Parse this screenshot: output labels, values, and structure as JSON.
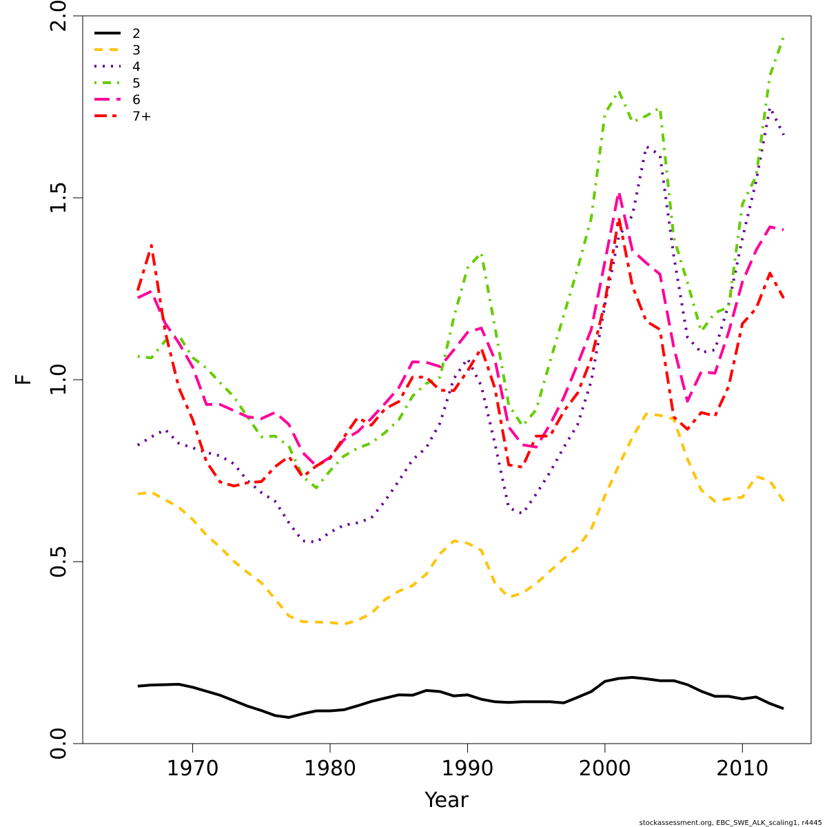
{
  "chart_data": {
    "type": "line",
    "title": "",
    "xlabel": "Year",
    "ylabel": "F",
    "xlim": [
      1962,
      2015
    ],
    "ylim": [
      0,
      2
    ],
    "x_ticks": [
      1970,
      1980,
      1990,
      2000,
      2010
    ],
    "y_ticks": [
      0.0,
      0.5,
      1.0,
      1.5,
      2.0
    ],
    "y_tick_labels": [
      "0.0",
      "0.5",
      "1.0",
      "1.5",
      "2.0"
    ],
    "grid": false,
    "legend_position": "top-left",
    "footer_note": "stockassessment.org, EBC_SWE_ALK_scaling1, r4445",
    "x": [
      1966,
      1967,
      1968,
      1969,
      1970,
      1971,
      1972,
      1973,
      1974,
      1975,
      1976,
      1977,
      1978,
      1979,
      1980,
      1981,
      1982,
      1983,
      1984,
      1985,
      1986,
      1987,
      1988,
      1989,
      1990,
      1991,
      1992,
      1993,
      1994,
      1995,
      1996,
      1997,
      1998,
      1999,
      2000,
      2001,
      2002,
      2003,
      2004,
      2005,
      2006,
      2007,
      2008,
      2009,
      2010,
      2011,
      2012,
      2013
    ],
    "series": [
      {
        "name": "2",
        "color": "#000000",
        "dash": "solid",
        "values": [
          0.158,
          0.161,
          0.162,
          0.163,
          0.155,
          0.144,
          0.133,
          0.118,
          0.103,
          0.091,
          0.077,
          0.072,
          0.082,
          0.09,
          0.09,
          0.093,
          0.104,
          0.116,
          0.125,
          0.134,
          0.133,
          0.146,
          0.143,
          0.131,
          0.134,
          0.122,
          0.115,
          0.113,
          0.115,
          0.115,
          0.115,
          0.112,
          0.127,
          0.143,
          0.171,
          0.179,
          0.182,
          0.178,
          0.173,
          0.173,
          0.162,
          0.144,
          0.13,
          0.13,
          0.123,
          0.128,
          0.11,
          0.096
        ]
      },
      {
        "name": "3",
        "color": "#FFC40C",
        "dash": "dashed",
        "values": [
          0.686,
          0.691,
          0.67,
          0.649,
          0.616,
          0.573,
          0.54,
          0.501,
          0.47,
          0.442,
          0.397,
          0.351,
          0.335,
          0.334,
          0.333,
          0.328,
          0.339,
          0.358,
          0.396,
          0.419,
          0.434,
          0.466,
          0.522,
          0.557,
          0.551,
          0.531,
          0.441,
          0.402,
          0.414,
          0.44,
          0.474,
          0.508,
          0.538,
          0.59,
          0.681,
          0.764,
          0.842,
          0.906,
          0.902,
          0.892,
          0.782,
          0.697,
          0.666,
          0.673,
          0.677,
          0.734,
          0.722,
          0.666
        ]
      },
      {
        "name": "4",
        "color": "#660099",
        "dash": "dotted",
        "values": [
          0.82,
          0.843,
          0.863,
          0.825,
          0.813,
          0.8,
          0.791,
          0.769,
          0.722,
          0.69,
          0.666,
          0.607,
          0.557,
          0.554,
          0.581,
          0.6,
          0.607,
          0.62,
          0.667,
          0.722,
          0.78,
          0.813,
          0.881,
          1.003,
          1.058,
          0.983,
          0.823,
          0.648,
          0.632,
          0.686,
          0.746,
          0.814,
          0.876,
          0.996,
          1.206,
          1.393,
          1.452,
          1.641,
          1.618,
          1.341,
          1.117,
          1.075,
          1.082,
          1.207,
          1.389,
          1.546,
          1.749,
          1.673
        ]
      },
      {
        "name": "5",
        "color": "#66CC00",
        "dash": "dotdash",
        "values": [
          1.064,
          1.06,
          1.107,
          1.122,
          1.061,
          1.032,
          0.992,
          0.953,
          0.897,
          0.843,
          0.845,
          0.817,
          0.734,
          0.703,
          0.75,
          0.79,
          0.812,
          0.826,
          0.855,
          0.89,
          0.955,
          0.99,
          1.007,
          1.171,
          1.307,
          1.349,
          1.143,
          0.931,
          0.873,
          0.918,
          1.05,
          1.177,
          1.304,
          1.444,
          1.731,
          1.794,
          1.708,
          1.725,
          1.748,
          1.391,
          1.267,
          1.133,
          1.184,
          1.199,
          1.483,
          1.56,
          1.836,
          1.943
        ]
      },
      {
        "name": "6",
        "color": "#FF0099",
        "dash": "longdash",
        "values": [
          1.225,
          1.243,
          1.155,
          1.101,
          1.035,
          0.932,
          0.932,
          0.915,
          0.898,
          0.893,
          0.91,
          0.877,
          0.8,
          0.763,
          0.787,
          0.835,
          0.857,
          0.894,
          0.935,
          0.978,
          1.049,
          1.048,
          1.036,
          1.082,
          1.13,
          1.142,
          1.054,
          0.87,
          0.821,
          0.815,
          0.877,
          0.951,
          1.042,
          1.138,
          1.325,
          1.518,
          1.355,
          1.321,
          1.29,
          1.09,
          0.941,
          1.022,
          1.018,
          1.131,
          1.269,
          1.356,
          1.42,
          1.412
        ]
      },
      {
        "name": "7+",
        "color": "#FF0000",
        "dash": "twodash",
        "values": [
          1.245,
          1.369,
          1.132,
          0.977,
          0.891,
          0.775,
          0.719,
          0.708,
          0.717,
          0.72,
          0.761,
          0.789,
          0.733,
          0.763,
          0.784,
          0.842,
          0.896,
          0.875,
          0.92,
          0.94,
          1.007,
          1.007,
          0.971,
          0.97,
          1.024,
          1.087,
          0.976,
          0.766,
          0.76,
          0.845,
          0.845,
          0.913,
          0.963,
          1.057,
          1.213,
          1.446,
          1.257,
          1.161,
          1.138,
          0.898,
          0.864,
          0.91,
          0.9,
          0.982,
          1.154,
          1.196,
          1.293,
          1.224
        ]
      }
    ]
  }
}
